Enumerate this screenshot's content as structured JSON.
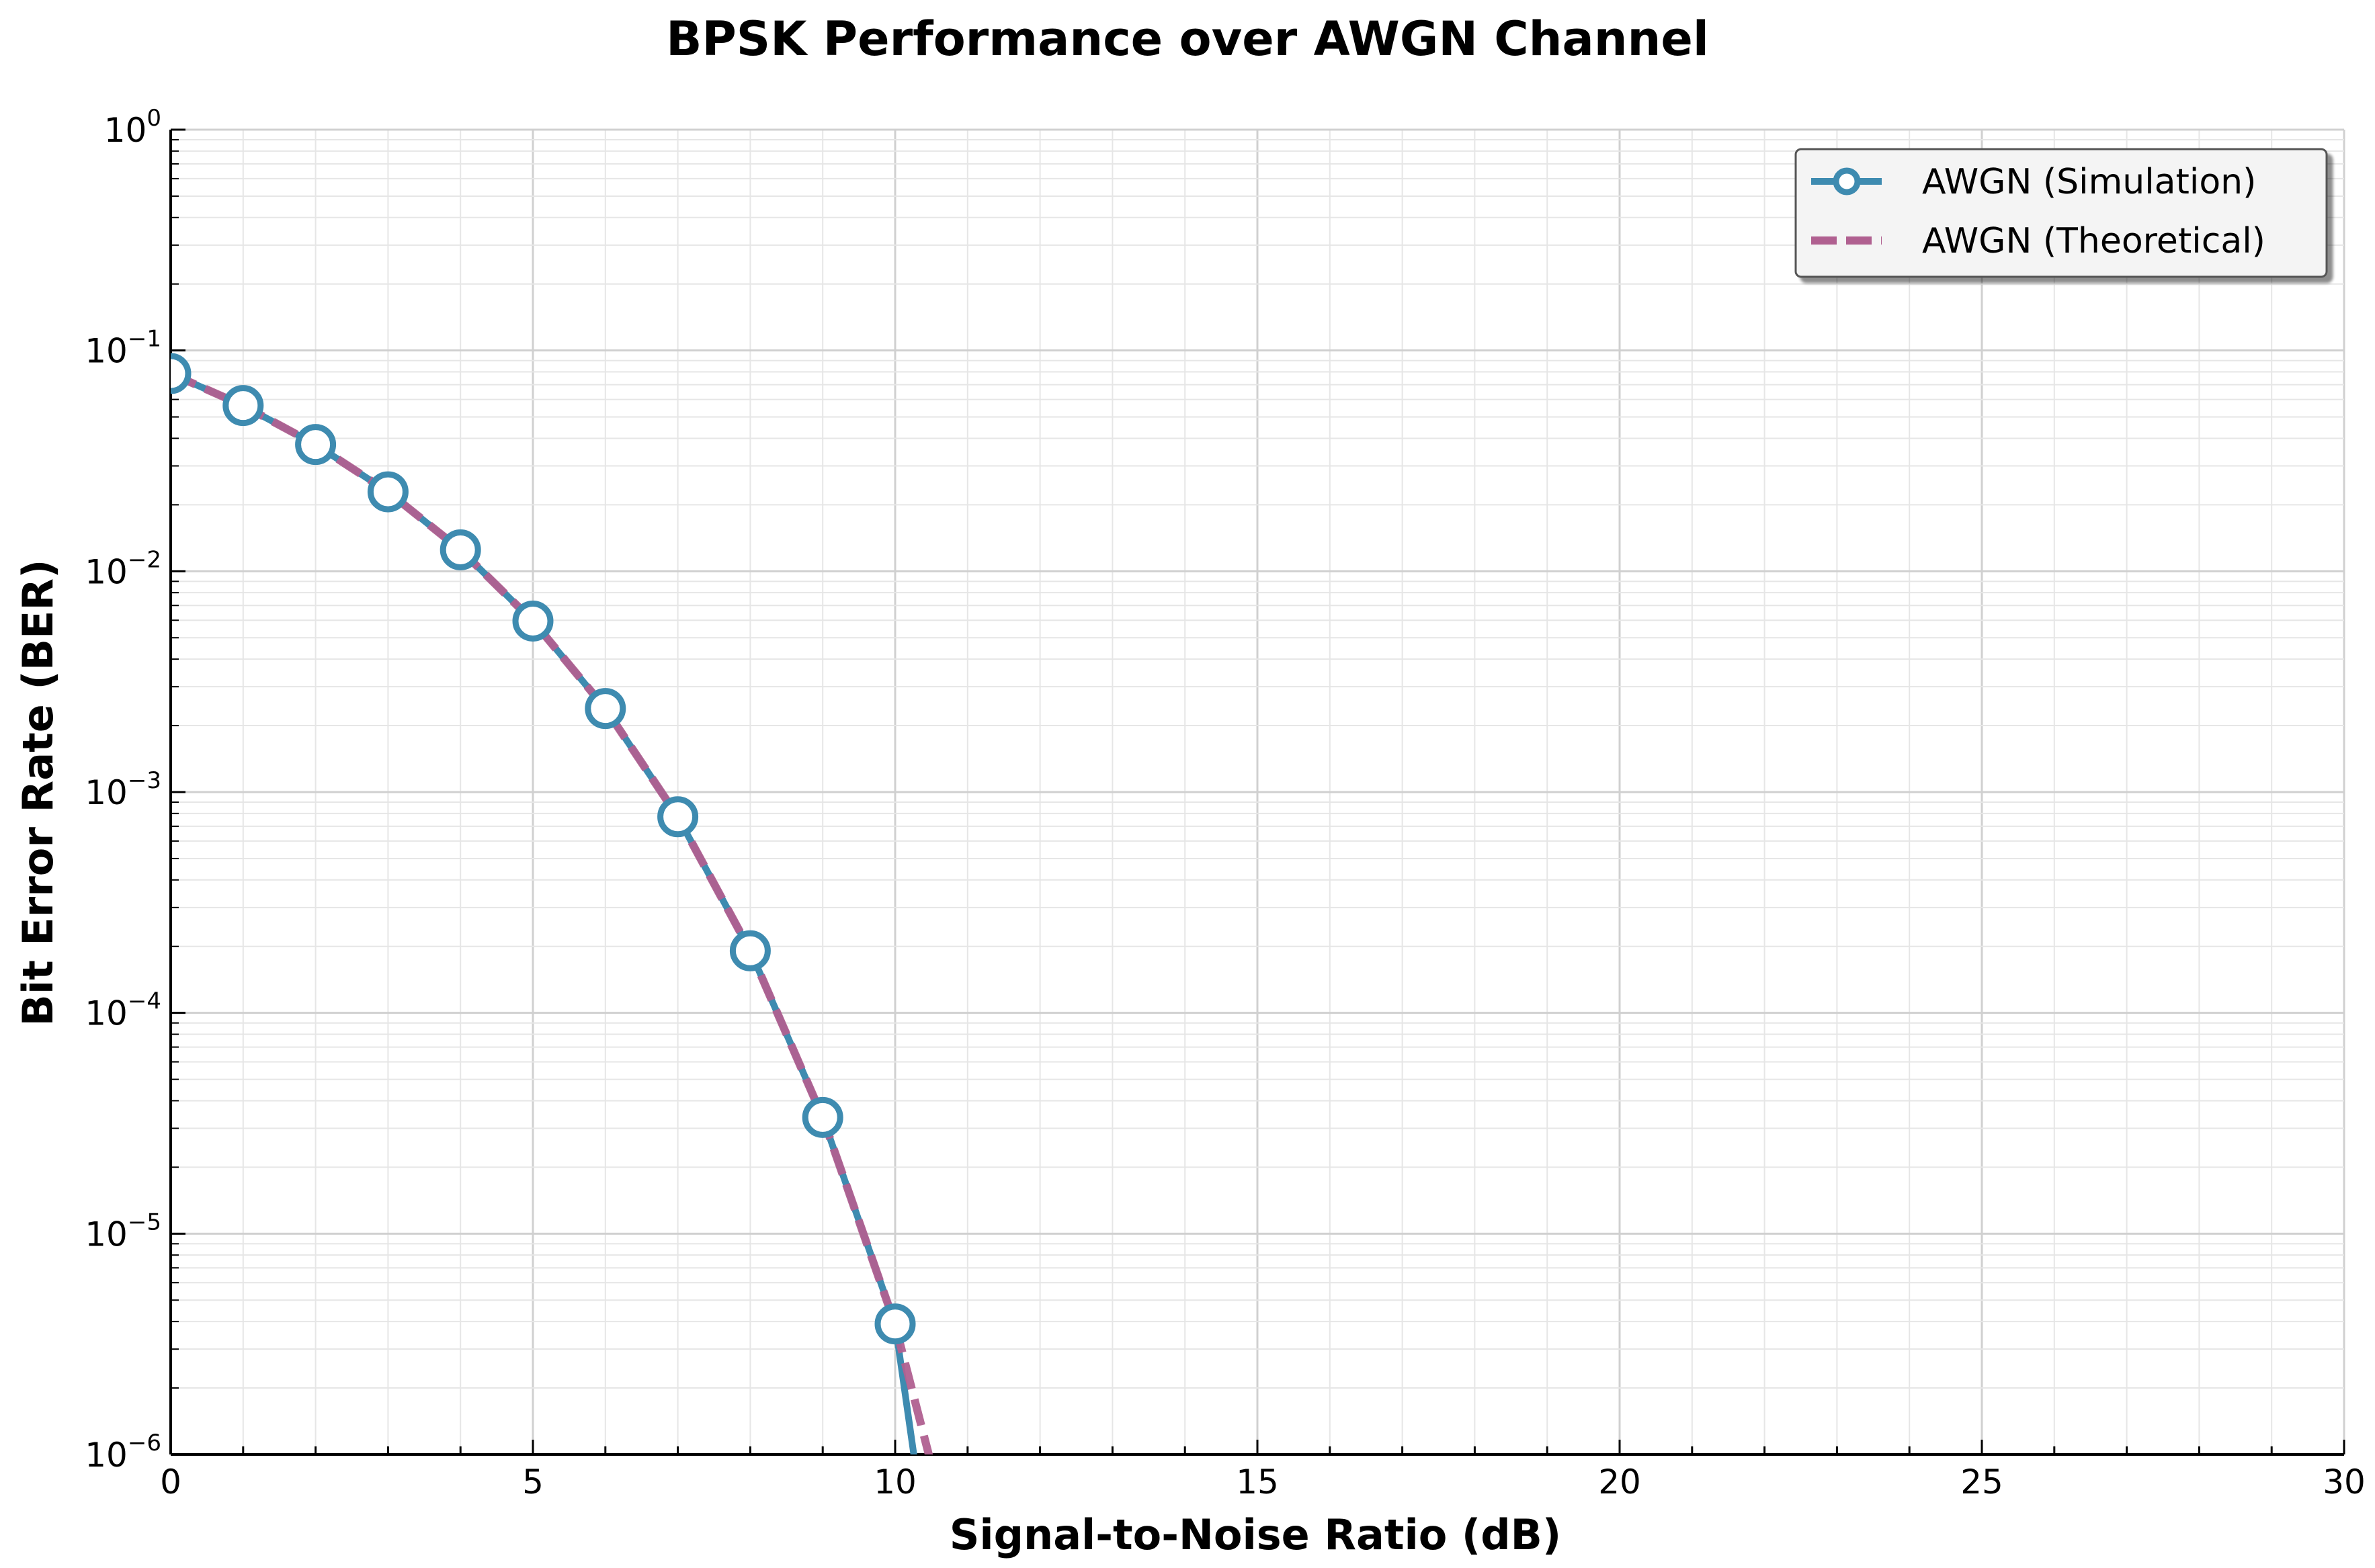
{
  "chart_data": {
    "type": "line",
    "title": "BPSK Performance over AWGN Channel",
    "xlabel": "Signal-to-Noise Ratio (dB)",
    "ylabel": "Bit Error Rate (BER)",
    "xlim": [
      0,
      30
    ],
    "ylim": [
      1e-06,
      1
    ],
    "yscale": "log",
    "grid": true,
    "legend_position": "top-right",
    "x_ticks": [
      0,
      5,
      10,
      15,
      20,
      25,
      30
    ],
    "x_tick_labels": [
      "0",
      "5",
      "10",
      "15",
      "20",
      "25",
      "30"
    ],
    "y_ticks": [
      0,
      -1,
      -2,
      -3,
      -4,
      -5,
      -6
    ],
    "y_tick_labels": [
      {
        "base": "10",
        "exp": "0"
      },
      {
        "base": "10",
        "exp": "−1"
      },
      {
        "base": "10",
        "exp": "−2"
      },
      {
        "base": "10",
        "exp": "−3"
      },
      {
        "base": "10",
        "exp": "−4"
      },
      {
        "base": "10",
        "exp": "−5"
      },
      {
        "base": "10",
        "exp": "−6"
      }
    ],
    "series": [
      {
        "name": "AWGN (Simulation)",
        "color": "#3e8bb0",
        "style": "solid-with-circle-markers",
        "x": [
          0,
          1,
          2,
          3,
          4,
          5,
          6,
          7,
          8,
          9,
          10,
          10.3,
          10.6
        ],
        "y": [
          0.0786,
          0.0563,
          0.0375,
          0.0229,
          0.0125,
          0.00595,
          0.00239,
          0.000773,
          0.000191,
          3.36e-05,
          3.9e-06,
          8e-07,
          2e-07
        ],
        "marker_count": 11
      },
      {
        "name": "AWGN (Theoretical)",
        "color": "#b06090",
        "style": "dashed",
        "x": [
          0,
          1,
          2,
          3,
          4,
          5,
          6,
          7,
          8,
          9,
          10,
          10.5,
          11
        ],
        "y": [
          0.0786,
          0.0563,
          0.0375,
          0.0229,
          0.0125,
          0.00595,
          0.00239,
          0.000773,
          0.000191,
          3.36e-05,
          3.87e-06,
          9e-07,
          2.6e-07
        ]
      }
    ]
  }
}
